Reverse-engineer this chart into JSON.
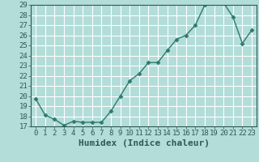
{
  "xlabel": "Humidex (Indice chaleur)",
  "x": [
    0,
    1,
    2,
    3,
    4,
    5,
    6,
    7,
    8,
    9,
    10,
    11,
    12,
    13,
    14,
    15,
    16,
    17,
    18,
    19,
    20,
    21,
    22,
    23
  ],
  "y": [
    19.7,
    18.1,
    17.7,
    17.1,
    17.5,
    17.4,
    17.4,
    17.4,
    18.5,
    20.0,
    21.5,
    22.2,
    23.3,
    23.3,
    24.5,
    25.6,
    26.0,
    27.0,
    29.0,
    29.2,
    29.2,
    27.8,
    25.2,
    26.5
  ],
  "line_color": "#2d7a6e",
  "marker": "D",
  "marker_size": 2.5,
  "bg_color": "#b2ddd8",
  "grid_color": "#ffffff",
  "ylim": [
    17,
    29
  ],
  "xlim": [
    -0.5,
    23.5
  ],
  "yticks": [
    17,
    18,
    19,
    20,
    21,
    22,
    23,
    24,
    25,
    26,
    27,
    28,
    29
  ],
  "xticks": [
    0,
    1,
    2,
    3,
    4,
    5,
    6,
    7,
    8,
    9,
    10,
    11,
    12,
    13,
    14,
    15,
    16,
    17,
    18,
    19,
    20,
    21,
    22,
    23
  ],
  "tick_fontsize": 6.5,
  "label_fontsize": 8
}
